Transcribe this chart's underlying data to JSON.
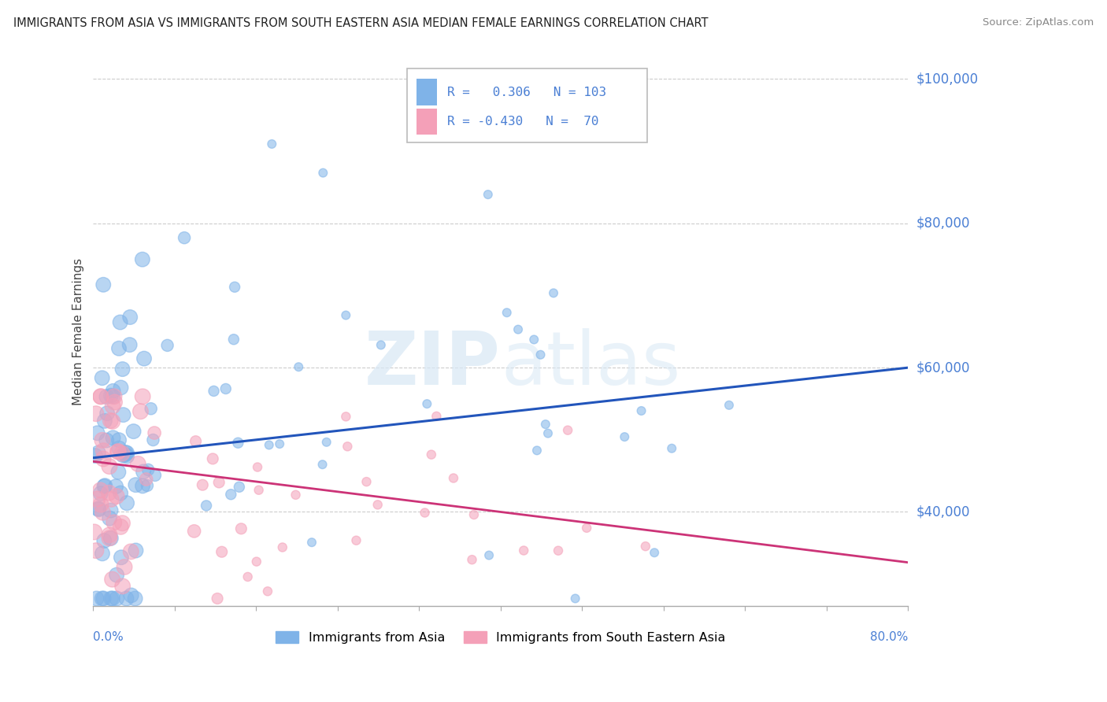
{
  "title": "IMMIGRANTS FROM ASIA VS IMMIGRANTS FROM SOUTH EASTERN ASIA MEDIAN FEMALE EARNINGS CORRELATION CHART",
  "source": "Source: ZipAtlas.com",
  "ylabel": "Median Female Earnings",
  "xmin": 0.0,
  "xmax": 0.8,
  "ymin": 27000,
  "ymax": 103000,
  "blue_R": 0.306,
  "blue_N": 103,
  "pink_R": -0.43,
  "pink_N": 70,
  "legend_label_blue": "Immigrants from Asia",
  "legend_label_pink": "Immigrants from South Eastern Asia",
  "blue_color": "#7fb3e8",
  "pink_color": "#f4a0b8",
  "blue_line_color": "#2255bb",
  "pink_line_color": "#cc3377",
  "watermark_color": "#d8e8f5",
  "background_color": "#ffffff",
  "grid_color": "#cccccc",
  "axis_label_color": "#4a7fd4",
  "ytick_vals": [
    40000,
    60000,
    80000,
    100000
  ],
  "ytick_labels": [
    "$40,000",
    "$60,000",
    "$80,000",
    "$100,000"
  ]
}
